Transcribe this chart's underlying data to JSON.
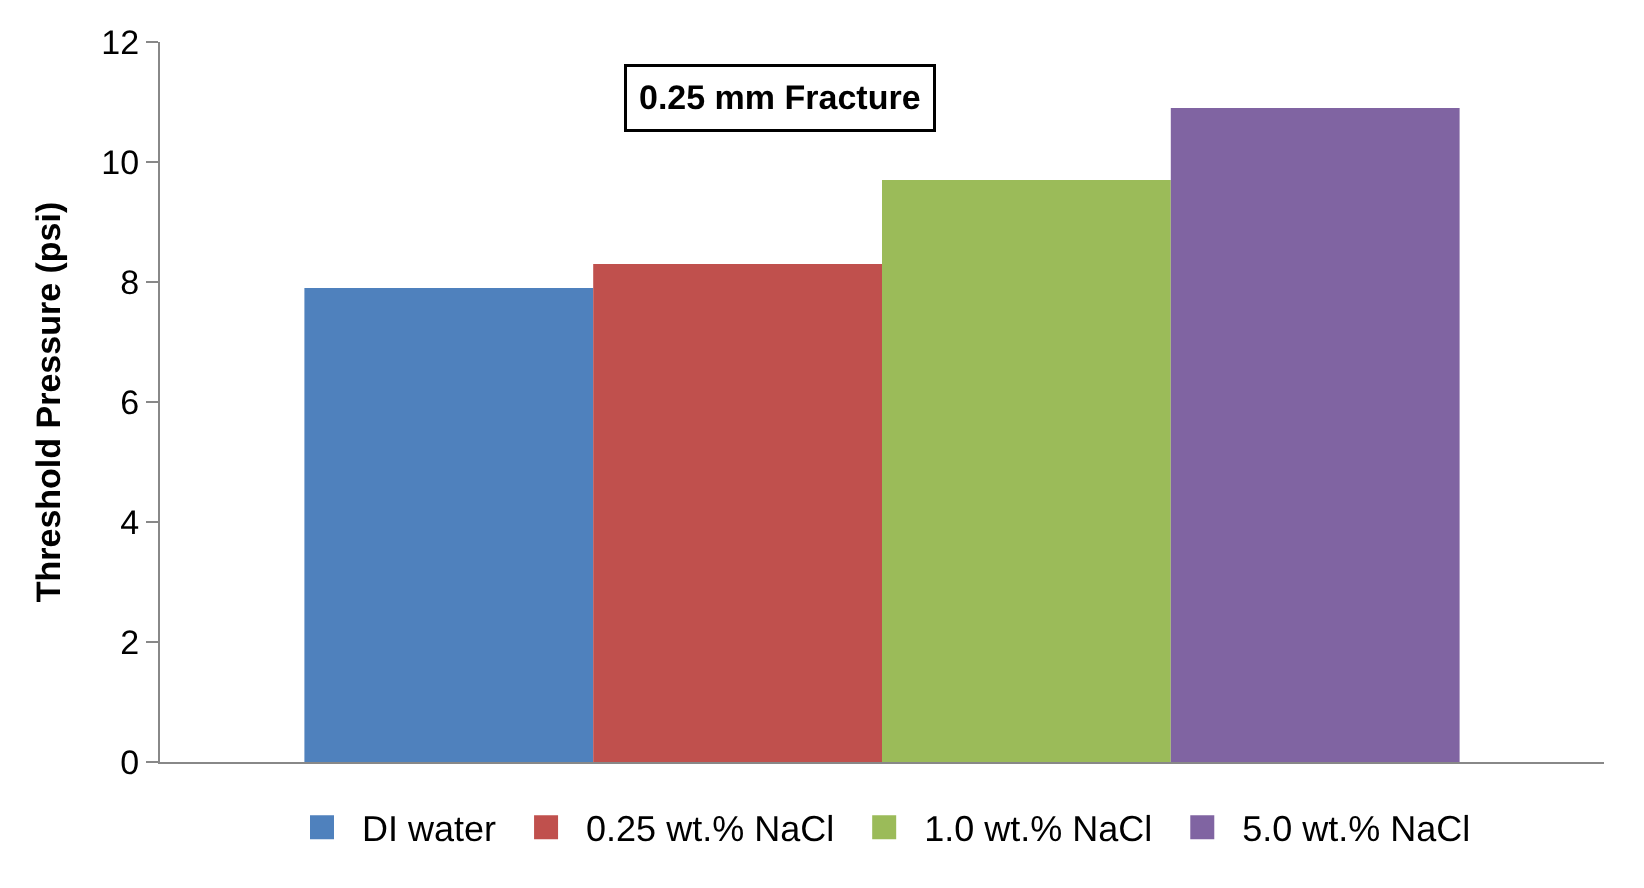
{
  "chart_data": {
    "type": "bar",
    "title": "0.25 mm Fracture",
    "ylabel": "Threshold Pressure (psi)",
    "categories": [
      null
    ],
    "series": [
      {
        "name": "DI water",
        "color": "#4f81bd",
        "values": [
          7.9
        ]
      },
      {
        "name": "0.25 wt.% NaCl",
        "color": "#c0504d",
        "values": [
          8.3
        ]
      },
      {
        "name": "1.0 wt.% NaCl",
        "color": "#9bbb59",
        "values": [
          9.7
        ]
      },
      {
        "name": "5.0 wt.% NaCl",
        "color": "#8064a2",
        "values": [
          10.9
        ]
      }
    ],
    "ylim": [
      0,
      12
    ],
    "yticks": [
      0,
      2,
      4,
      6,
      8,
      10,
      12
    ],
    "legend": "bottom"
  }
}
